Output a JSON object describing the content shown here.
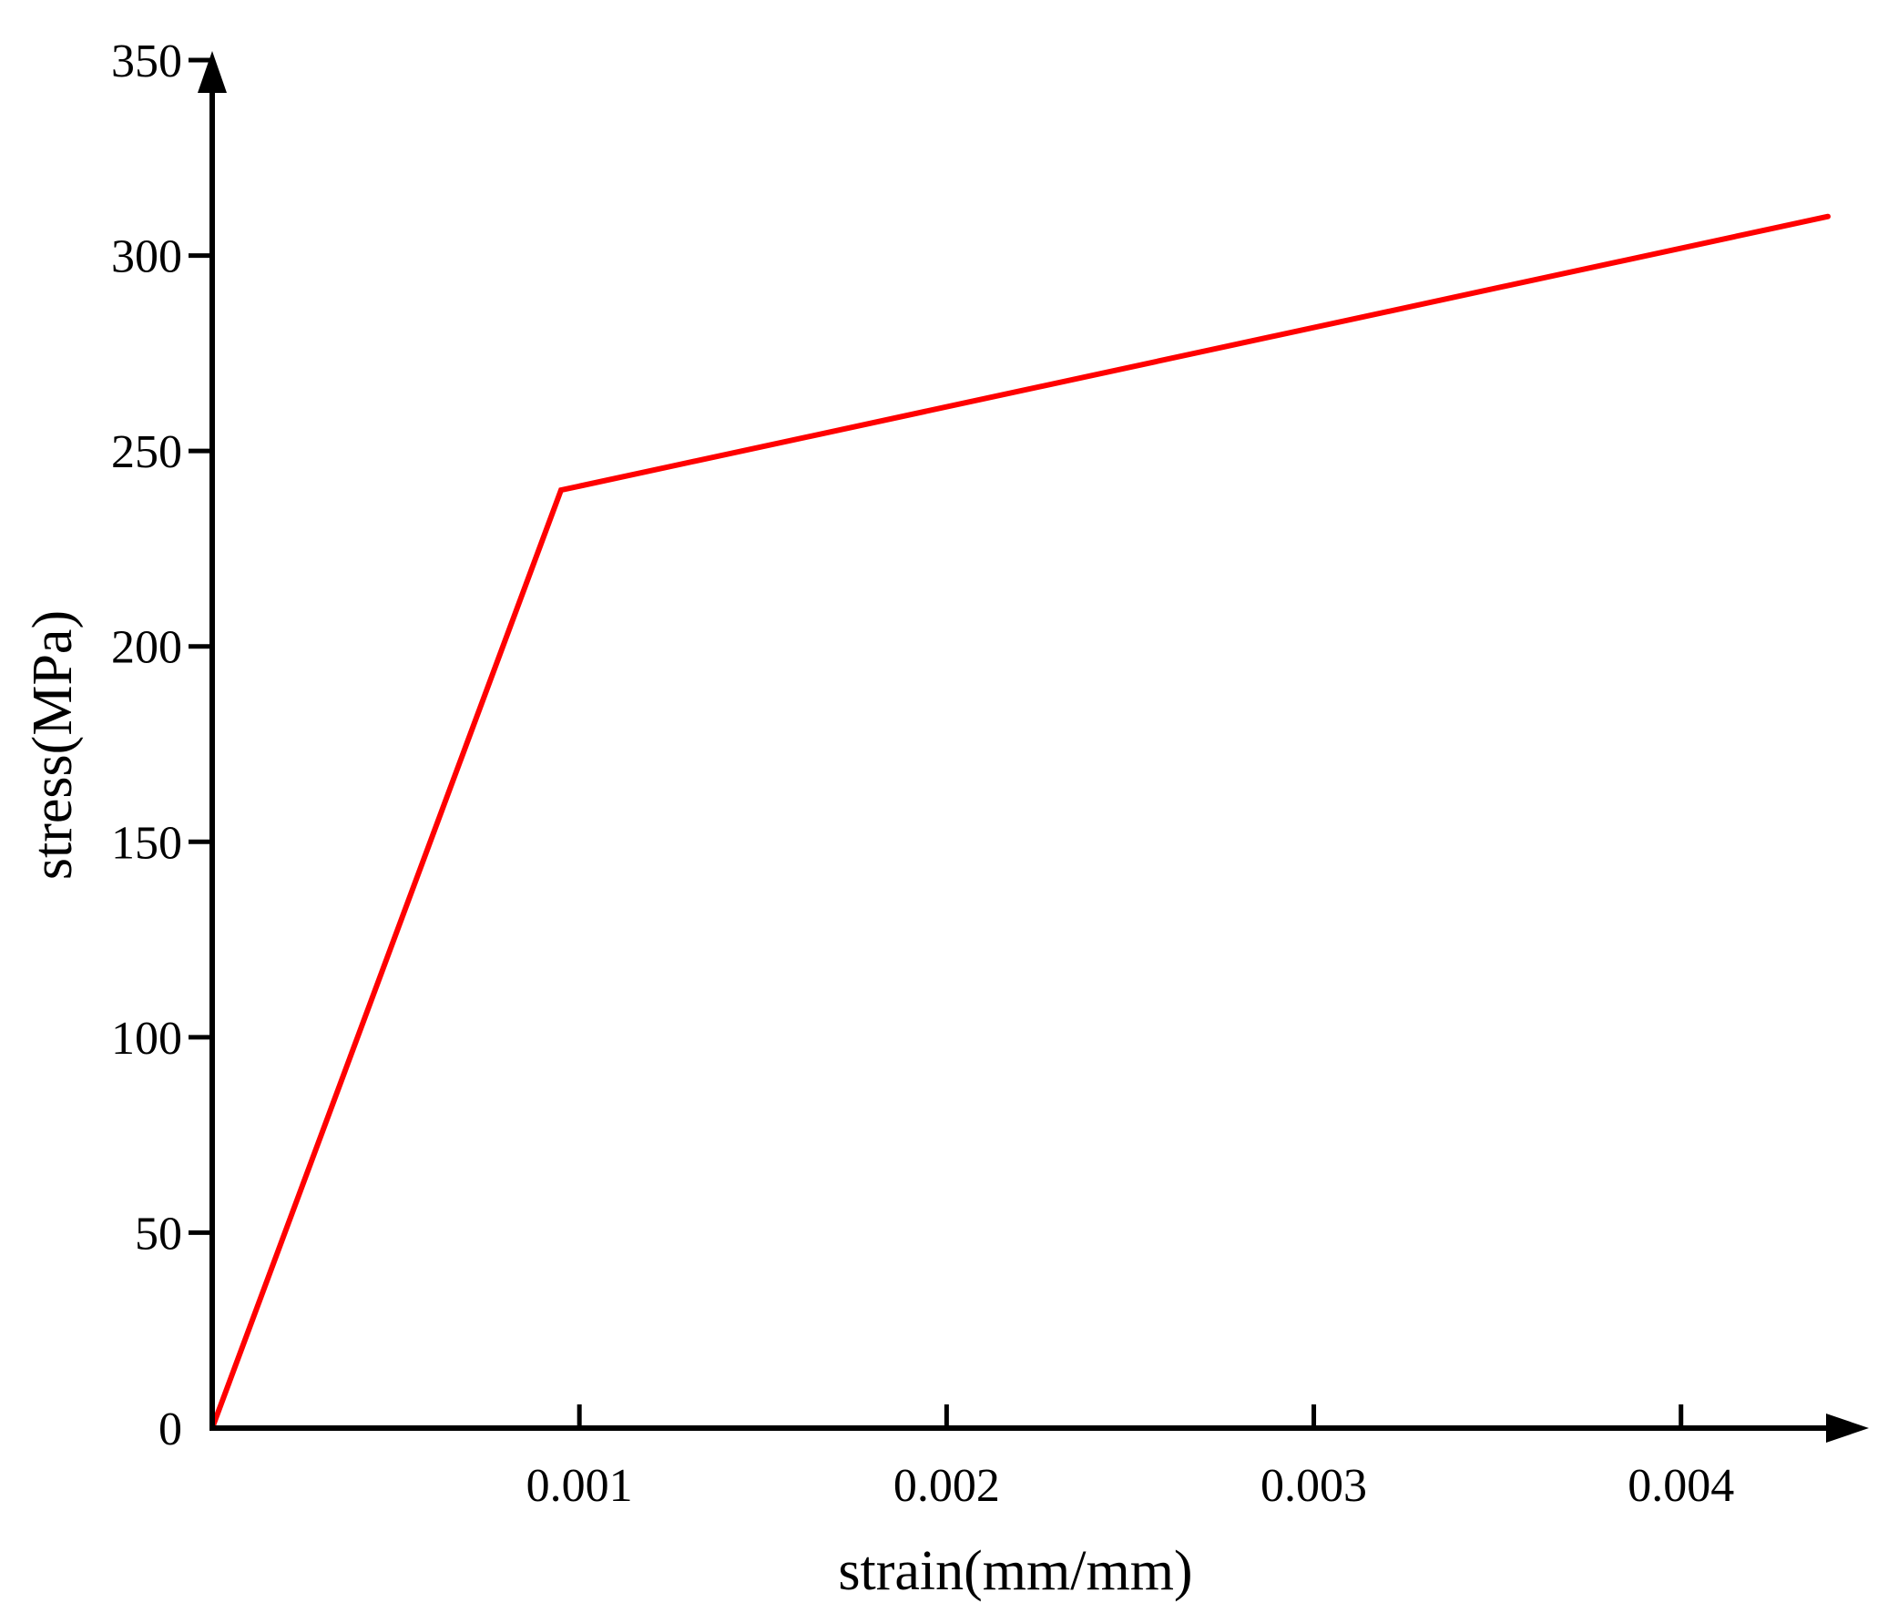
{
  "chart_data": {
    "type": "line",
    "xlabel": "strain(mm/mm)",
    "ylabel": "stress(MPa)",
    "xlim": [
      0,
      0.0044
    ],
    "ylim": [
      0,
      350
    ],
    "x_ticks": [
      {
        "value": 0.001,
        "label": "0.001"
      },
      {
        "value": 0.002,
        "label": "0.002"
      },
      {
        "value": 0.003,
        "label": "0.003"
      },
      {
        "value": 0.004,
        "label": "0.004"
      }
    ],
    "y_ticks": [
      {
        "value": 0,
        "label": "0"
      },
      {
        "value": 50,
        "label": "50"
      },
      {
        "value": 100,
        "label": "100"
      },
      {
        "value": 150,
        "label": "150"
      },
      {
        "value": 200,
        "label": "200"
      },
      {
        "value": 250,
        "label": "250"
      },
      {
        "value": 300,
        "label": "300"
      },
      {
        "value": 350,
        "label": "350"
      }
    ],
    "grid": false,
    "legend": "none",
    "series": [
      {
        "color": "#ff0000",
        "points": [
          {
            "x": 0,
            "y": 0
          },
          {
            "x": 0.00095,
            "y": 240
          },
          {
            "x": 0.0044,
            "y": 310
          }
        ]
      }
    ]
  }
}
